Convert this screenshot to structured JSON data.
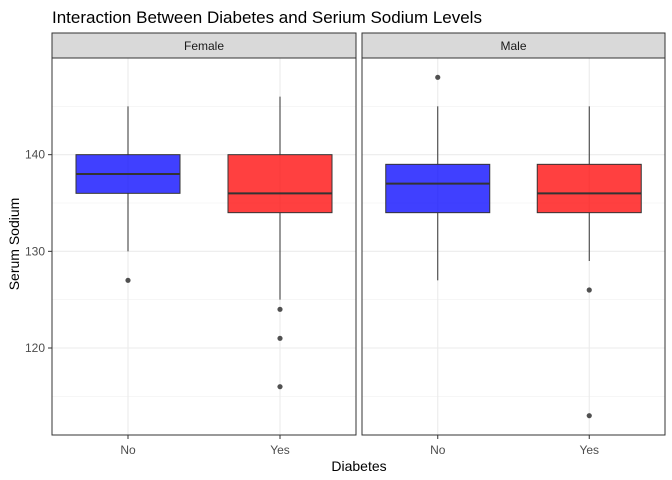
{
  "chart_data": {
    "type": "box",
    "title": "Interaction Between Diabetes and Serium Sodium Levels",
    "xlabel": "Diabetes",
    "ylabel": "Serum Sodium",
    "ylim": [
      111,
      150
    ],
    "yticks": [
      120,
      130,
      140
    ],
    "categories": [
      "No",
      "Yes"
    ],
    "fill_colors": {
      "No": "#0000ff",
      "Yes": "#ff0000"
    },
    "fill_alpha": 0.75,
    "grid": true,
    "legend": "none",
    "panels": [
      {
        "facet": "Female",
        "boxes": [
          {
            "category": "No",
            "min": 130,
            "q1": 136,
            "median": 138,
            "q3": 140,
            "max": 145,
            "outliers": [
              127
            ]
          },
          {
            "category": "Yes",
            "min": 125,
            "q1": 134,
            "median": 136,
            "q3": 140,
            "max": 146,
            "outliers": [
              124,
              121,
              116
            ]
          }
        ]
      },
      {
        "facet": "Male",
        "boxes": [
          {
            "category": "No",
            "min": 127,
            "q1": 134,
            "median": 137,
            "q3": 139,
            "max": 145,
            "outliers": [
              148
            ]
          },
          {
            "category": "Yes",
            "min": 129,
            "q1": 134,
            "median": 136,
            "q3": 139,
            "max": 145,
            "outliers": [
              126,
              113
            ]
          }
        ]
      }
    ]
  }
}
